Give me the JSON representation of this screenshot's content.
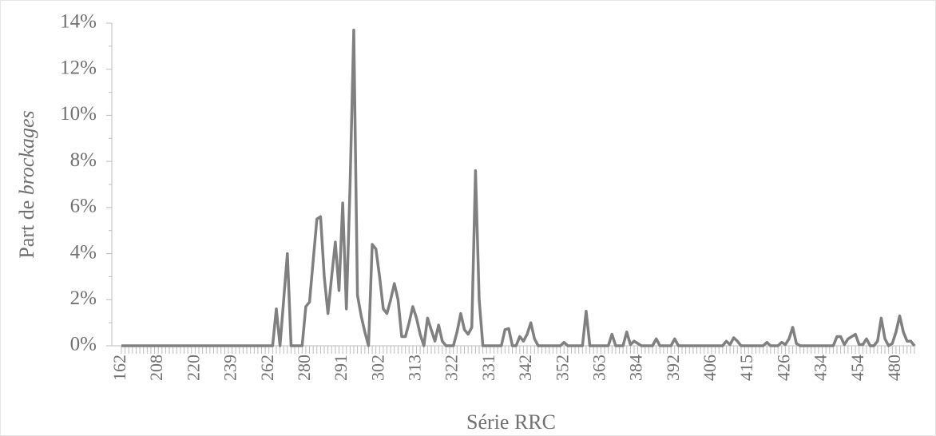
{
  "chart_data": {
    "type": "line",
    "x_label": "Série RRC",
    "y_label": {
      "text": "Part de ",
      "emphasis": "brockages"
    },
    "color": "#808080",
    "categories": [
      "162",
      null,
      null,
      null,
      null,
      null,
      null,
      null,
      null,
      null,
      "208",
      null,
      null,
      null,
      null,
      null,
      null,
      null,
      null,
      null,
      "220",
      null,
      null,
      null,
      null,
      null,
      null,
      null,
      null,
      null,
      "239",
      null,
      null,
      null,
      null,
      null,
      null,
      null,
      null,
      null,
      "262",
      null,
      null,
      null,
      null,
      null,
      null,
      null,
      null,
      null,
      "280",
      null,
      null,
      null,
      null,
      null,
      null,
      null,
      null,
      null,
      "291",
      null,
      null,
      null,
      null,
      null,
      null,
      null,
      null,
      null,
      "302",
      null,
      null,
      null,
      null,
      null,
      null,
      null,
      null,
      null,
      "313",
      null,
      null,
      null,
      null,
      null,
      null,
      null,
      null,
      null,
      "322",
      null,
      null,
      null,
      null,
      null,
      null,
      null,
      null,
      null,
      "331",
      null,
      null,
      null,
      null,
      null,
      null,
      null,
      null,
      null,
      "342",
      null,
      null,
      null,
      null,
      null,
      null,
      null,
      null,
      null,
      "352",
      null,
      null,
      null,
      null,
      null,
      null,
      null,
      null,
      null,
      "363",
      null,
      null,
      null,
      null,
      null,
      null,
      null,
      null,
      null,
      "384",
      null,
      null,
      null,
      null,
      null,
      null,
      null,
      null,
      null,
      "392",
      null,
      null,
      null,
      null,
      null,
      null,
      null,
      null,
      null,
      "406",
      null,
      null,
      null,
      null,
      null,
      null,
      null,
      null,
      null,
      "415",
      null,
      null,
      null,
      null,
      null,
      null,
      null,
      null,
      null,
      "426",
      null,
      null,
      null,
      null,
      null,
      null,
      null,
      null,
      null,
      "434",
      null,
      null,
      null,
      null,
      null,
      null,
      null,
      null,
      null,
      "454",
      null,
      null,
      null,
      null,
      null,
      null,
      null,
      null,
      null,
      "480",
      null,
      null,
      null,
      null,
      null
    ],
    "values": [
      0,
      0,
      0,
      0,
      0,
      0,
      0,
      0,
      0,
      0,
      0,
      0,
      0,
      0,
      0,
      0,
      0,
      0,
      0,
      0,
      0,
      0,
      0,
      0,
      0,
      0,
      0,
      0,
      0,
      0,
      0,
      0,
      0,
      0,
      0,
      0,
      0,
      0,
      0,
      0,
      0,
      0,
      1.6,
      0,
      2.0,
      4.0,
      0,
      0,
      0,
      0,
      1.7,
      1.9,
      3.7,
      5.5,
      5.6,
      3.0,
      1.4,
      3.0,
      4.5,
      2.4,
      6.2,
      1.6,
      7.0,
      13.7,
      2.2,
      1.3,
      0.6,
      0,
      4.4,
      4.2,
      3.0,
      1.6,
      1.4,
      2.0,
      2.7,
      2.0,
      0.4,
      0.4,
      1.0,
      1.7,
      1.2,
      0.5,
      0,
      1.2,
      0.7,
      0.2,
      0.9,
      0.2,
      0,
      0,
      0,
      0.6,
      1.4,
      0.7,
      0.5,
      0.8,
      7.6,
      2.0,
      0,
      0,
      0,
      0,
      0,
      0,
      0.7,
      0.75,
      0,
      0,
      0.4,
      0.2,
      0.5,
      1.0,
      0.3,
      0,
      0,
      0,
      0,
      0,
      0,
      0,
      0.15,
      0,
      0,
      0,
      0,
      0,
      1.5,
      0,
      0,
      0,
      0,
      0,
      0,
      0.5,
      0,
      0,
      0,
      0.6,
      0.05,
      0.2,
      0.1,
      0,
      0,
      0,
      0,
      0.3,
      0,
      0,
      0,
      0,
      0.3,
      0,
      0,
      0,
      0,
      0,
      0,
      0,
      0,
      0,
      0,
      0,
      0,
      0,
      0.2,
      0.05,
      0.35,
      0.2,
      0,
      0,
      0,
      0,
      0,
      0,
      0,
      0.15,
      0,
      0,
      0,
      0.15,
      0.05,
      0.3,
      0.8,
      0.1,
      0,
      0,
      0,
      0,
      0,
      0,
      0,
      0,
      0,
      0,
      0.4,
      0.4,
      0.05,
      0.3,
      0.4,
      0.5,
      0.05,
      0.05,
      0.3,
      0,
      0,
      0.2,
      1.2,
      0.3,
      0,
      0.1,
      0.6,
      1.3,
      0.6,
      0.2,
      0.2,
      0
    ],
    "ylim": [
      0,
      14
    ],
    "yticks": [
      {
        "value": 0,
        "label": "0%"
      },
      {
        "value": 2,
        "label": "2%"
      },
      {
        "value": 4,
        "label": "4%"
      },
      {
        "value": 6,
        "label": "6%"
      },
      {
        "value": 8,
        "label": "8%"
      },
      {
        "value": 10,
        "label": "10%"
      },
      {
        "value": 12,
        "label": "12%"
      },
      {
        "value": 14,
        "label": "14%"
      }
    ],
    "grid": false
  }
}
